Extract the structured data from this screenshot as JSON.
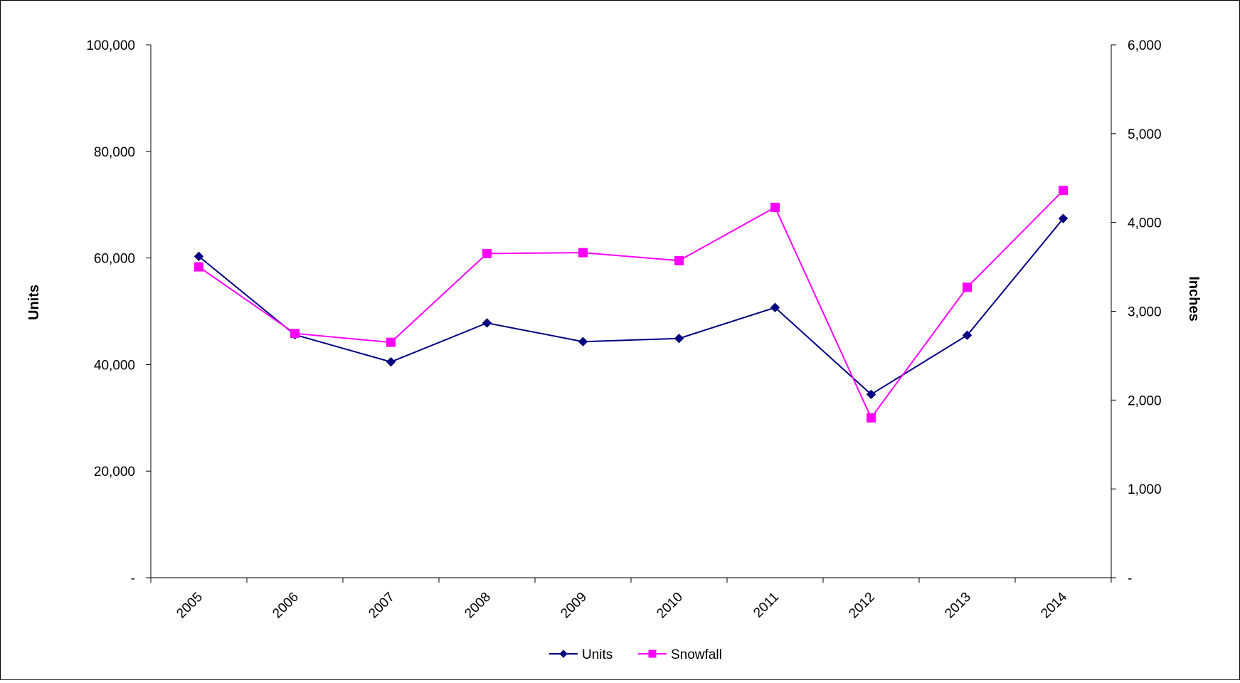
{
  "chart_data": {
    "type": "line",
    "categories": [
      "2005",
      "2006",
      "2007",
      "2008",
      "2009",
      "2010",
      "2011",
      "2012",
      "2013",
      "2014"
    ],
    "series": [
      {
        "name": "Units",
        "axis": "left",
        "color": "#000080",
        "marker": "diamond",
        "values": [
          60300,
          45600,
          40500,
          47800,
          44300,
          44900,
          50700,
          34400,
          45500,
          67400
        ]
      },
      {
        "name": "Snowfall",
        "axis": "right",
        "color": "#FF00FF",
        "marker": "square",
        "values": [
          3500,
          2750,
          2650,
          3650,
          3660,
          3570,
          4170,
          1800,
          3270,
          4360
        ]
      }
    ],
    "ylabel": "Units",
    "y2label": "Inches",
    "ylim": [
      0,
      100000
    ],
    "y2lim": [
      0,
      6000
    ],
    "yticks": [
      "-",
      "20,000",
      "40,000",
      "60,000",
      "80,000",
      "100,000"
    ],
    "y2ticks": [
      "-",
      "1,000",
      "2,000",
      "3,000",
      "4,000",
      "5,000",
      "6,000"
    ],
    "grid": false,
    "legend_position": "bottom"
  }
}
